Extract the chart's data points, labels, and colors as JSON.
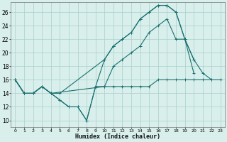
{
  "title": "",
  "xlabel": "Humidex (Indice chaleur)",
  "bg_color": "#d8efec",
  "grid_color": "#aacfcc",
  "line_color": "#1a7070",
  "xlim": [
    -0.5,
    23.5
  ],
  "ylim": [
    9,
    27.5
  ],
  "xticks": [
    0,
    1,
    2,
    3,
    4,
    5,
    6,
    7,
    8,
    9,
    10,
    11,
    12,
    13,
    14,
    15,
    16,
    17,
    18,
    19,
    20,
    21,
    22,
    23
  ],
  "yticks": [
    10,
    12,
    14,
    16,
    18,
    20,
    22,
    24,
    26
  ],
  "series": [
    [
      [
        0,
        16
      ],
      [
        1,
        14
      ],
      [
        2,
        14
      ],
      [
        3,
        15
      ],
      [
        4,
        14
      ],
      [
        5,
        13
      ],
      [
        6,
        12
      ],
      [
        7,
        12
      ],
      [
        8,
        10
      ],
      [
        9,
        15
      ],
      [
        10,
        15
      ],
      [
        11,
        15
      ],
      [
        12,
        15
      ],
      [
        13,
        15
      ],
      [
        14,
        15
      ],
      [
        15,
        15
      ],
      [
        16,
        16
      ],
      [
        17,
        16
      ],
      [
        18,
        16
      ],
      [
        19,
        16
      ],
      [
        20,
        16
      ],
      [
        21,
        16
      ],
      [
        22,
        16
      ],
      [
        23,
        16
      ]
    ],
    [
      [
        0,
        16
      ],
      [
        1,
        14
      ],
      [
        2,
        14
      ],
      [
        3,
        15
      ],
      [
        4,
        14
      ],
      [
        5,
        13
      ],
      [
        6,
        12
      ],
      [
        7,
        12
      ],
      [
        8,
        10
      ],
      [
        9,
        15
      ],
      [
        10,
        19
      ],
      [
        11,
        21
      ],
      [
        12,
        22
      ],
      [
        13,
        23
      ],
      [
        14,
        25
      ],
      [
        15,
        26
      ],
      [
        16,
        27
      ],
      [
        17,
        27
      ],
      [
        18,
        26
      ],
      [
        19,
        22
      ],
      [
        20,
        19
      ],
      [
        21,
        17
      ],
      [
        22,
        16
      ]
    ],
    [
      [
        0,
        16
      ],
      [
        1,
        14
      ],
      [
        2,
        14
      ],
      [
        3,
        15
      ],
      [
        4,
        14
      ],
      [
        5,
        14
      ],
      [
        10,
        19
      ],
      [
        11,
        21
      ],
      [
        12,
        22
      ],
      [
        13,
        23
      ],
      [
        14,
        25
      ],
      [
        15,
        26
      ],
      [
        16,
        27
      ],
      [
        17,
        27
      ],
      [
        18,
        26
      ],
      [
        19,
        22
      ],
      [
        20,
        19
      ]
    ],
    [
      [
        0,
        16
      ],
      [
        1,
        14
      ],
      [
        2,
        14
      ],
      [
        3,
        15
      ],
      [
        4,
        14
      ],
      [
        10,
        15
      ],
      [
        11,
        18
      ],
      [
        12,
        19
      ],
      [
        13,
        20
      ],
      [
        14,
        21
      ],
      [
        15,
        23
      ],
      [
        16,
        24
      ],
      [
        17,
        25
      ],
      [
        18,
        22
      ],
      [
        19,
        22
      ],
      [
        20,
        17
      ]
    ]
  ]
}
